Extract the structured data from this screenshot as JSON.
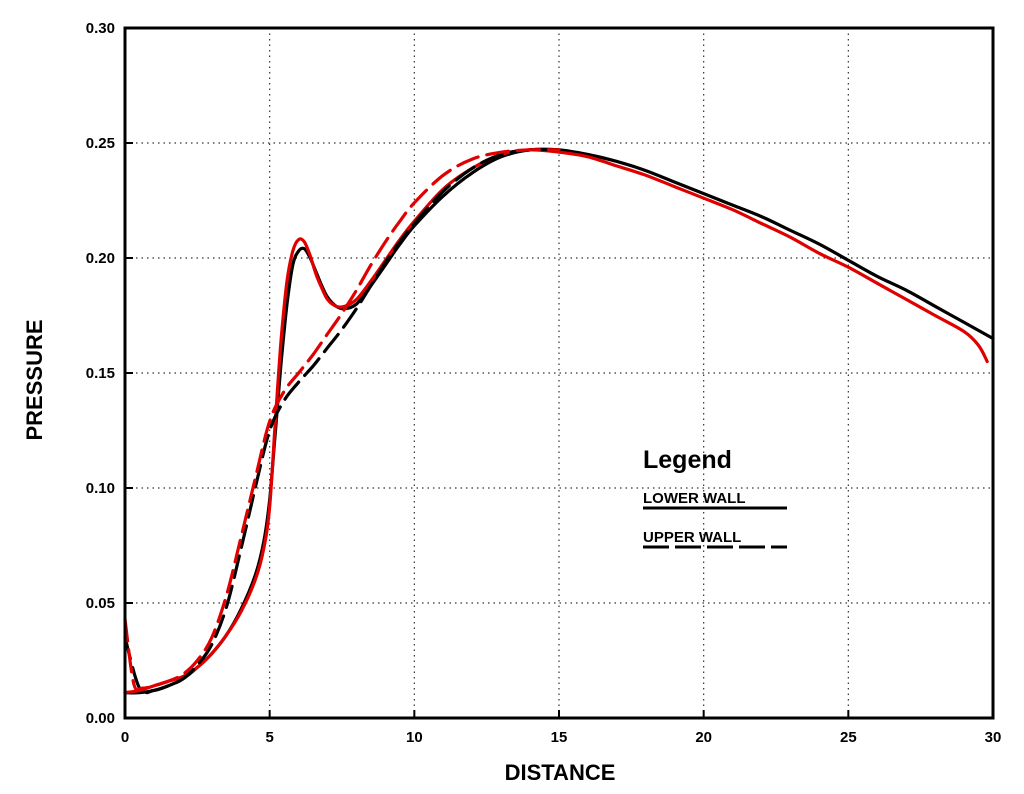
{
  "chart_data": {
    "type": "line",
    "title": "",
    "xlabel": "DISTANCE",
    "ylabel": "PRESSURE",
    "xlim": [
      0,
      30
    ],
    "ylim": [
      0,
      0.3
    ],
    "x_ticks": [
      0,
      5,
      10,
      15,
      20,
      25,
      30
    ],
    "x_tick_labels": [
      "0",
      "5",
      "10",
      "15",
      "20",
      "25",
      "30"
    ],
    "y_ticks": [
      0,
      0.05,
      0.1,
      0.15,
      0.2,
      0.25,
      0.3
    ],
    "y_tick_labels": [
      "0.00",
      "0.05",
      "0.10",
      "0.15",
      "0.20",
      "0.25",
      "0.30"
    ],
    "grid": true,
    "legend": {
      "title": "Legend",
      "placement": "center-right",
      "entries": [
        "LOWER WALL",
        "UPPER WALL"
      ]
    },
    "series": [
      {
        "name": "LOWER WALL",
        "color": "#000000",
        "dash": "solid",
        "x": [
          0,
          0.5,
          1,
          1.5,
          2,
          2.5,
          3,
          3.5,
          4,
          4.5,
          4.8,
          5,
          5.2,
          5.4,
          5.6,
          5.8,
          6,
          6.2,
          6.4,
          6.6,
          6.8,
          7,
          7.3,
          7.6,
          8,
          8.5,
          9,
          9.5,
          10,
          11,
          12,
          13,
          14,
          15,
          16,
          17,
          18,
          19,
          20,
          21,
          22,
          23,
          24,
          25,
          26,
          27,
          28,
          29,
          30
        ],
        "y": [
          0.011,
          0.011,
          0.012,
          0.014,
          0.017,
          0.022,
          0.028,
          0.036,
          0.047,
          0.062,
          0.077,
          0.095,
          0.125,
          0.155,
          0.18,
          0.197,
          0.203,
          0.204,
          0.2,
          0.194,
          0.188,
          0.183,
          0.179,
          0.178,
          0.18,
          0.188,
          0.197,
          0.206,
          0.214,
          0.227,
          0.237,
          0.244,
          0.247,
          0.247,
          0.245,
          0.242,
          0.238,
          0.233,
          0.228,
          0.223,
          0.218,
          0.212,
          0.206,
          0.199,
          0.192,
          0.186,
          0.179,
          0.172,
          0.165
        ]
      },
      {
        "name": "LOWER WALL",
        "color": "#e00000",
        "dash": "solid",
        "x": [
          0,
          0.5,
          1,
          1.5,
          2,
          2.5,
          3,
          3.5,
          4,
          4.5,
          4.8,
          5,
          5.2,
          5.4,
          5.6,
          5.8,
          6,
          6.2,
          6.4,
          6.6,
          6.8,
          7,
          7.3,
          7.6,
          8,
          8.5,
          9,
          9.5,
          10,
          11,
          12,
          13,
          14,
          15,
          16,
          17,
          18,
          19,
          20,
          21,
          22,
          23,
          24,
          25,
          26,
          27,
          28,
          29,
          29.5,
          29.8
        ],
        "y": [
          0.011,
          0.012,
          0.014,
          0.016,
          0.018,
          0.022,
          0.028,
          0.036,
          0.046,
          0.06,
          0.074,
          0.092,
          0.13,
          0.165,
          0.19,
          0.203,
          0.208,
          0.207,
          0.201,
          0.193,
          0.187,
          0.182,
          0.179,
          0.179,
          0.182,
          0.19,
          0.199,
          0.208,
          0.216,
          0.23,
          0.239,
          0.245,
          0.247,
          0.246,
          0.244,
          0.24,
          0.236,
          0.231,
          0.226,
          0.221,
          0.215,
          0.209,
          0.202,
          0.196,
          0.189,
          0.182,
          0.175,
          0.168,
          0.162,
          0.155
        ]
      },
      {
        "name": "UPPER WALL",
        "color": "#000000",
        "dash": "dashed",
        "x": [
          0,
          0.5,
          1,
          1.5,
          2,
          2.5,
          3,
          3.5,
          4,
          4.5,
          5,
          5.5,
          6,
          6.5,
          7,
          7.5,
          8,
          8.5,
          9,
          9.5,
          10,
          11,
          12,
          13,
          14,
          15
        ],
        "y": [
          0.035,
          0.013,
          0.012,
          0.014,
          0.017,
          0.023,
          0.032,
          0.048,
          0.073,
          0.1,
          0.125,
          0.138,
          0.146,
          0.153,
          0.161,
          0.169,
          0.178,
          0.188,
          0.198,
          0.207,
          0.215,
          0.229,
          0.239,
          0.245,
          0.247,
          0.247
        ]
      },
      {
        "name": "UPPER WALL",
        "color": "#e00000",
        "dash": "dashed",
        "x": [
          0,
          0.3,
          0.6,
          1,
          1.5,
          2,
          2.5,
          3,
          3.5,
          4,
          4.5,
          5,
          5.5,
          6,
          6.5,
          7,
          7.5,
          8,
          8.5,
          9,
          9.5,
          10,
          11,
          12,
          13,
          14,
          15
        ],
        "y": [
          0.043,
          0.015,
          0.013,
          0.014,
          0.016,
          0.019,
          0.025,
          0.035,
          0.053,
          0.078,
          0.104,
          0.129,
          0.142,
          0.15,
          0.158,
          0.167,
          0.176,
          0.186,
          0.197,
          0.207,
          0.216,
          0.224,
          0.236,
          0.243,
          0.246,
          0.247,
          0.247
        ]
      }
    ]
  }
}
